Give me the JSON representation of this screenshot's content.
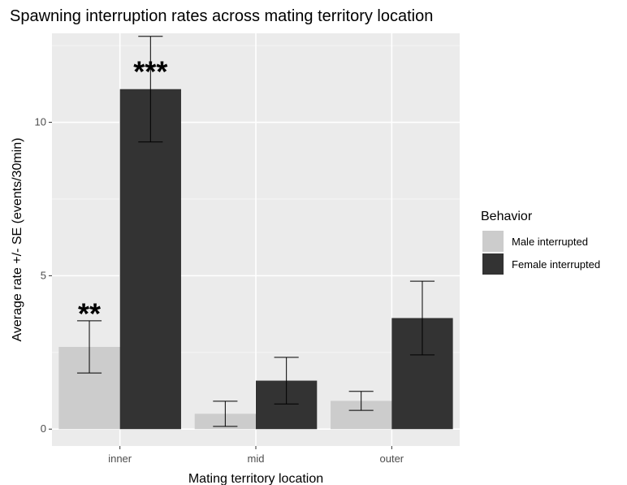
{
  "chart_data": {
    "type": "bar",
    "title": "Spawning interruption rates across mating territory location",
    "xlabel": "Mating territory location",
    "ylabel": "Average rate +/- SE (events/30min)",
    "categories": [
      "inner",
      "mid",
      "outer"
    ],
    "ylim": [
      -0.55,
      12.9
    ],
    "yticks": [
      0,
      5,
      10
    ],
    "grid": true,
    "legend": {
      "title": "Behavior",
      "position": "right"
    },
    "series": [
      {
        "name": "Male interrupted",
        "color": "#cccccc",
        "values": [
          2.68,
          0.5,
          0.92
        ],
        "se": [
          0.85,
          0.41,
          0.31
        ]
      },
      {
        "name": "Female interrupted",
        "color": "#333333",
        "values": [
          11.08,
          1.58,
          3.62
        ],
        "se": [
          1.72,
          0.76,
          1.2
        ]
      }
    ],
    "annotations": [
      {
        "category": "inner",
        "series": "Male interrupted",
        "text": "**",
        "y": 3.8
      },
      {
        "category": "inner",
        "series": "Female interrupted",
        "text": "***",
        "y": 11.7
      }
    ]
  }
}
